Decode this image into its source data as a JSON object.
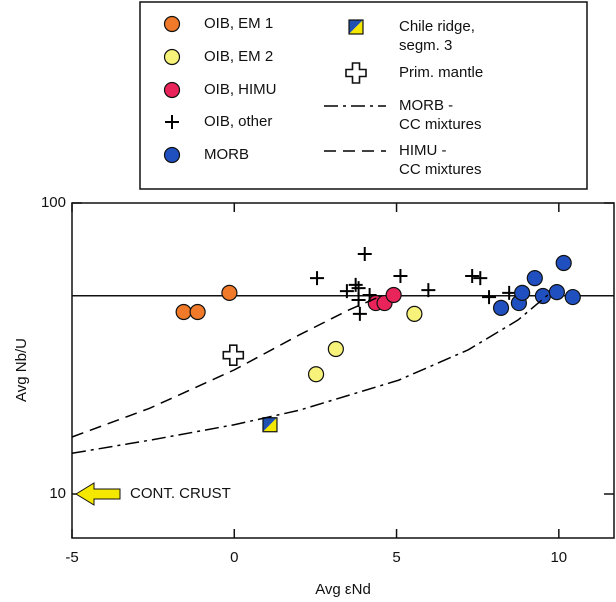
{
  "chart_data": {
    "type": "scatter",
    "x_label": "Avg εNd",
    "y_label": "Avg Nb/U",
    "xlim": [
      -5,
      11.7
    ],
    "ylim": [
      7.06,
      100
    ],
    "xticks": [
      -5,
      0,
      5,
      10
    ],
    "yticks": [
      10,
      100
    ],
    "y_scale": "log",
    "hline": 48,
    "annotation": {
      "text": "CONT. CRUST",
      "x": -5,
      "y": 10,
      "color": "#f5e800"
    },
    "series": [
      {
        "name": "OIB, EM 1",
        "color": "#f07a2a",
        "marker": "circle",
        "x": [
          -1.56,
          -1.13,
          -0.15
        ],
        "values": [
          42.2,
          42.2,
          49.1
        ]
      },
      {
        "name": "OIB, EM 2",
        "color": "#f6f27a",
        "marker": "circle",
        "x": [
          2.52,
          3.13,
          5.55
        ],
        "values": [
          25.8,
          31.5,
          41.6
        ]
      },
      {
        "name": "OIB, HIMU",
        "color": "#e8245a",
        "marker": "circle",
        "x": [
          4.36,
          4.63,
          4.91
        ],
        "values": [
          45.3,
          45.3,
          48.3
        ]
      },
      {
        "name": "OIB, other",
        "color": "#000000",
        "marker": "plus",
        "x": [
          2.55,
          4.02,
          3.47,
          3.74,
          3.83,
          3.83,
          3.87,
          4.17,
          5.12,
          5.98,
          7.33,
          7.58,
          7.85,
          8.47
        ],
        "values": [
          55.2,
          66.8,
          49.8,
          52.3,
          51.0,
          46.4,
          41.6,
          48.3,
          56.1,
          50.2,
          56.1,
          55.2,
          47.5,
          49.1
        ]
      },
      {
        "name": "MORB",
        "color": "#2050c0",
        "marker": "circle",
        "x": [
          8.22,
          8.77,
          8.87,
          9.26,
          9.51,
          9.94,
          10.15,
          10.43
        ],
        "values": [
          43.6,
          45.3,
          49.1,
          55.2,
          47.9,
          49.4,
          62.2,
          47.5
        ]
      },
      {
        "name": "Chile ridge,\nsegm. 3",
        "color": "#2050b0",
        "marker": "square-split",
        "x": [
          1.1
        ],
        "values": [
          17.3
        ]
      },
      {
        "name": "Prim. mantle",
        "color": "#ffffff",
        "marker": "open-cross",
        "x": [
          -0.03
        ],
        "values": [
          30.0
        ]
      },
      {
        "name": "MORB -\nCC mixtures",
        "color": "#000000",
        "line_style": "dash-dot",
        "x": [
          -5,
          -2.61,
          0,
          2.0,
          5.06,
          7.21,
          8.74,
          9.66
        ],
        "values": [
          13.8,
          15.3,
          17.3,
          19.4,
          24.6,
          31.3,
          39.6,
          48.3
        ]
      },
      {
        "name": "HIMU -\nCC mixtures",
        "color": "#000000",
        "line_style": "dashed",
        "x": [
          -5,
          -2.61,
          0,
          2.0,
          3.53,
          4.45
        ],
        "values": [
          15.7,
          19.7,
          26.7,
          35.2,
          42.9,
          47.5
        ]
      }
    ]
  }
}
